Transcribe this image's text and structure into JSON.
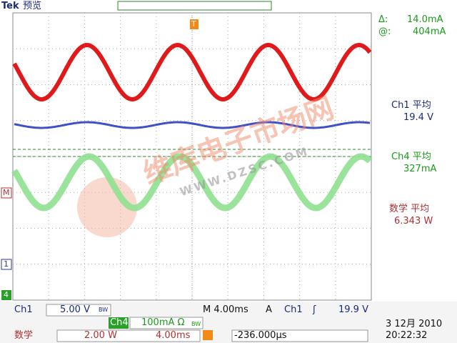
{
  "header": {
    "brand": "Tek",
    "mode": "预览",
    "trigger_marker": "T"
  },
  "markers": {
    "math": "M",
    "ch1": "1",
    "ch4": "4"
  },
  "cursor": {
    "delta_label": "Δ:",
    "delta_value": "14.0mA",
    "at_label": "@:",
    "at_value": "404mA"
  },
  "measurements": [
    {
      "name": "Ch1 平均",
      "value": "19.4 V"
    },
    {
      "name": "Ch4 平均",
      "value": "327mA"
    },
    {
      "name": "数学 平均",
      "value": "6.343 W"
    }
  ],
  "watermark": {
    "name": "维库电子市场网",
    "url": "WWW.DZSC.COM"
  },
  "status_row1": {
    "ch1": "Ch1",
    "ch1_scale": "5.00 V",
    "ch1_bw": "BW",
    "ch4": "Ch4",
    "ch4_scale": "100mA Ω",
    "ch4_bw": "BW",
    "timebase": "M 4.00ms",
    "trigger_mode": "A",
    "trigger_source": "Ch1",
    "trigger_slope": "ʃ",
    "trigger_level": "19.9 V"
  },
  "status_row2": {
    "math": "数学",
    "math_scale": "2.00 W",
    "math_time": "4.00ms",
    "offset": "-236.000µs",
    "date": "3 12月 2010",
    "time": "20:22:32"
  }
}
